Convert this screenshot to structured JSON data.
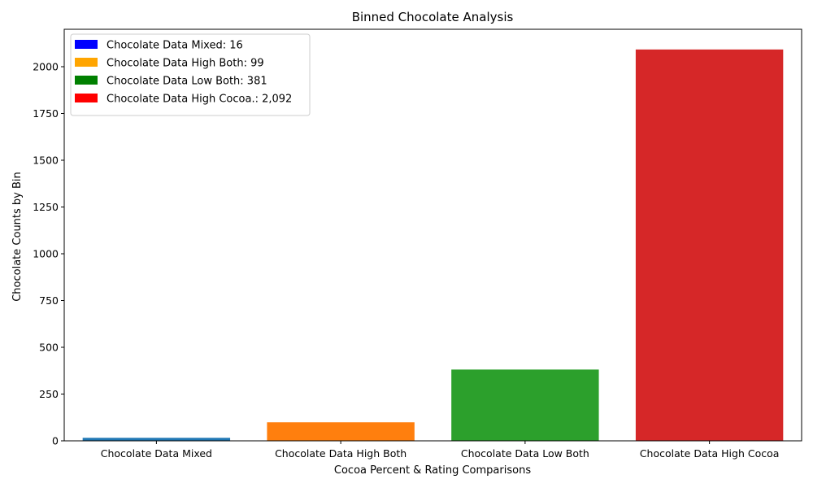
{
  "chart_data": {
    "type": "bar",
    "title": "Binned Chocolate Analysis",
    "xlabel": "Cocoa Percent & Rating Comparisons",
    "ylabel": "Chocolate Counts by Bin",
    "categories": [
      "Chocolate Data Mixed",
      "Chocolate Data High Both",
      "Chocolate Data Low Both",
      "Chocolate Data High Cocoa"
    ],
    "values": [
      16,
      99,
      381,
      2092
    ],
    "bar_colors": [
      "#1f77b4",
      "#ff7f0e",
      "#2ca02c",
      "#d62728"
    ],
    "ylim": [
      0,
      2200
    ],
    "yticks": [
      0,
      250,
      500,
      750,
      1000,
      1250,
      1500,
      1750,
      2000
    ],
    "grid": false,
    "legend": {
      "placement": "top-left",
      "entries": [
        {
          "label": "Chocolate Data Mixed: 16",
          "color": "#0000ff"
        },
        {
          "label": "Chocolate Data High Both: 99",
          "color": "#ffa500"
        },
        {
          "label": "Chocolate Data Low Both: 381",
          "color": "#008000"
        },
        {
          "label": "Chocolate Data High Cocoa.: 2,092",
          "color": "#ff0000"
        }
      ]
    }
  }
}
